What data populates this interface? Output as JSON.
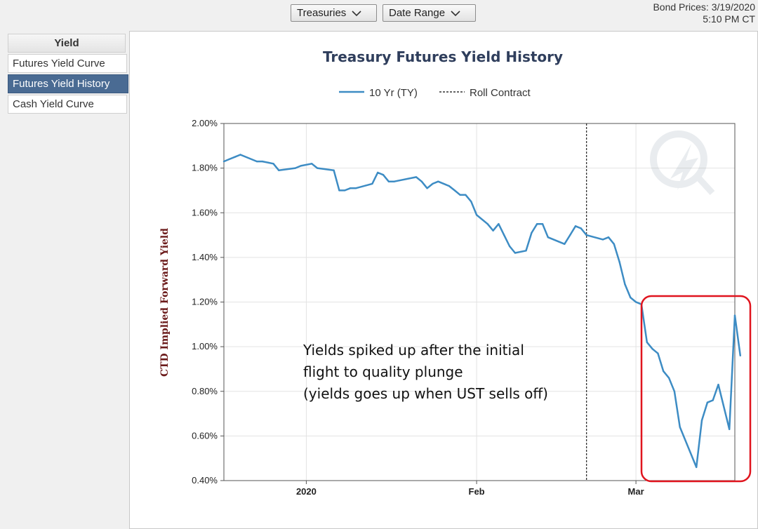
{
  "toolbar": {
    "treasuries_label": "Treasuries",
    "date_range_label": "Date Range"
  },
  "bond_prices": {
    "line1": "Bond Prices: 3/19/2020",
    "line2": "5:10 PM CT"
  },
  "sidebar": {
    "header": "Yield",
    "items": [
      {
        "label": "Futures Yield Curve",
        "active": false
      },
      {
        "label": "Futures Yield History",
        "active": true
      },
      {
        "label": "Cash Yield Curve",
        "active": false
      }
    ]
  },
  "colors": {
    "series": "#3d8cc4",
    "highlight": "#e0141e",
    "title": "#2f3e5c",
    "axis_title": "#6b1a1a"
  },
  "chart_data": {
    "type": "line",
    "title": "Treasury Futures Yield History",
    "ylabel": "CTD Implied Forward Yield",
    "xlabel": "",
    "ylim": [
      0.4,
      2.0
    ],
    "y_ticks": [
      "0.40%",
      "0.60%",
      "0.80%",
      "1.00%",
      "1.20%",
      "1.40%",
      "1.60%",
      "1.80%",
      "2.00%"
    ],
    "x_ticks": [
      {
        "label": "2020",
        "date": "2020-01-01"
      },
      {
        "label": "Feb",
        "date": "2020-02-01"
      },
      {
        "label": "Mar",
        "date": "2020-03-01"
      }
    ],
    "xlim": [
      "2019-12-17",
      "2020-03-19"
    ],
    "grid": true,
    "legend_position": "top",
    "roll_contract_date": "2020-02-21",
    "series": [
      {
        "name": "10 Yr (TY)",
        "points": [
          [
            "2019-12-17",
            1.83
          ],
          [
            "2019-12-18",
            1.84
          ],
          [
            "2019-12-19",
            1.85
          ],
          [
            "2019-12-20",
            1.86
          ],
          [
            "2019-12-23",
            1.83
          ],
          [
            "2019-12-24",
            1.83
          ],
          [
            "2019-12-26",
            1.82
          ],
          [
            "2019-12-27",
            1.79
          ],
          [
            "2019-12-30",
            1.8
          ],
          [
            "2019-12-31",
            1.81
          ],
          [
            "2020-01-02",
            1.82
          ],
          [
            "2020-01-03",
            1.8
          ],
          [
            "2020-01-06",
            1.79
          ],
          [
            "2020-01-07",
            1.7
          ],
          [
            "2020-01-08",
            1.7
          ],
          [
            "2020-01-09",
            1.71
          ],
          [
            "2020-01-10",
            1.71
          ],
          [
            "2020-01-13",
            1.73
          ],
          [
            "2020-01-14",
            1.78
          ],
          [
            "2020-01-15",
            1.77
          ],
          [
            "2020-01-16",
            1.74
          ],
          [
            "2020-01-17",
            1.74
          ],
          [
            "2020-01-21",
            1.76
          ],
          [
            "2020-01-22",
            1.74
          ],
          [
            "2020-01-23",
            1.71
          ],
          [
            "2020-01-24",
            1.73
          ],
          [
            "2020-01-25",
            1.74
          ],
          [
            "2020-01-27",
            1.72
          ],
          [
            "2020-01-28",
            1.7
          ],
          [
            "2020-01-29",
            1.68
          ],
          [
            "2020-01-30",
            1.68
          ],
          [
            "2020-01-31",
            1.65
          ],
          [
            "2020-02-01",
            1.59
          ],
          [
            "2020-02-03",
            1.55
          ],
          [
            "2020-02-04",
            1.52
          ],
          [
            "2020-02-05",
            1.55
          ],
          [
            "2020-02-06",
            1.5
          ],
          [
            "2020-02-07",
            1.45
          ],
          [
            "2020-02-08",
            1.42
          ],
          [
            "2020-02-10",
            1.43
          ],
          [
            "2020-02-11",
            1.51
          ],
          [
            "2020-02-12",
            1.55
          ],
          [
            "2020-02-13",
            1.55
          ],
          [
            "2020-02-14",
            1.49
          ],
          [
            "2020-02-17",
            1.46
          ],
          [
            "2020-02-18",
            1.5
          ],
          [
            "2020-02-19",
            1.54
          ],
          [
            "2020-02-20",
            1.53
          ],
          [
            "2020-02-21",
            1.5
          ],
          [
            "2020-02-24",
            1.48
          ],
          [
            "2020-02-25",
            1.49
          ],
          [
            "2020-02-26",
            1.46
          ],
          [
            "2020-02-27",
            1.38
          ],
          [
            "2020-02-28",
            1.28
          ],
          [
            "2020-02-29",
            1.22
          ],
          [
            "2020-03-01",
            1.2
          ],
          [
            "2020-03-02",
            1.19
          ],
          [
            "2020-03-03",
            1.02
          ],
          [
            "2020-03-04",
            0.99
          ],
          [
            "2020-03-05",
            0.97
          ],
          [
            "2020-03-06",
            0.89
          ],
          [
            "2020-03-07",
            0.86
          ],
          [
            "2020-03-08",
            0.8
          ],
          [
            "2020-03-09",
            0.64
          ],
          [
            "2020-03-12",
            0.46
          ],
          [
            "2020-03-13",
            0.67
          ],
          [
            "2020-03-14",
            0.75
          ],
          [
            "2020-03-15",
            0.76
          ],
          [
            "2020-03-16",
            0.83
          ],
          [
            "2020-03-18",
            0.63
          ],
          [
            "2020-03-19",
            1.14
          ],
          [
            "2020-03-20",
            0.96
          ]
        ]
      }
    ],
    "legend": [
      "10 Yr (TY)",
      "Roll Contract"
    ],
    "annotation": {
      "lines": [
        "Yields spiked up after the initial",
        "flight to quality plunge",
        "(yields goes up when UST sells off)"
      ]
    }
  }
}
